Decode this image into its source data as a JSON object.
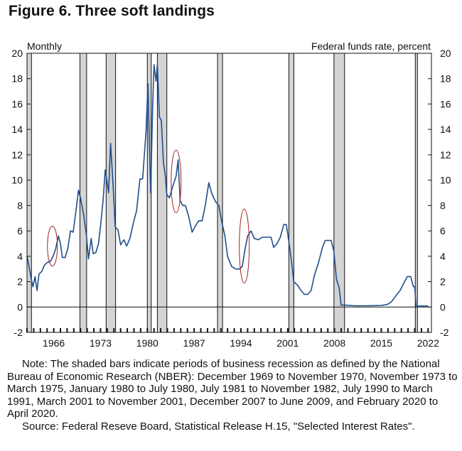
{
  "figure": {
    "title": "Figure 6. Three soft landings",
    "note": "Note: The shaded bars indicate periods of business recession as defined by the National Bureau of Economic Research (NBER): December 1969 to November 1970, November 1973 to March 1975, January 1980 to July 1980, July 1981 to November 1982, July 1990 to March 1991, March 2001 to November 2001, December 2007 to June 2009, and February 2020 to April 2020.",
    "source": "Source: Federal Reseve Board, Statistical Release H.15, \"Selected Interest Rates\"."
  },
  "chart_data": {
    "type": "line",
    "frequency_label": "Monthly",
    "ylabel": "Federal funds rate, percent",
    "xlim": [
      1962,
      2022.5
    ],
    "ylim": [
      -2,
      20
    ],
    "y_ticks": [
      -2,
      0,
      2,
      4,
      6,
      8,
      10,
      12,
      14,
      16,
      18,
      20
    ],
    "x_ticks": [
      1966,
      1973,
      1980,
      1987,
      1994,
      2001,
      2008,
      2015,
      2022
    ],
    "grid": false,
    "recessions": [
      [
        "1969-12",
        "1970-11"
      ],
      [
        "1973-11",
        "1975-03"
      ],
      [
        "1980-01",
        "1980-07"
      ],
      [
        "1981-07",
        "1982-11"
      ],
      [
        "1990-07",
        "1991-03"
      ],
      [
        "2001-03",
        "2001-11"
      ],
      [
        "2007-12",
        "2009-06"
      ],
      [
        "2020-02",
        "2020-04"
      ]
    ],
    "early_shading": [
      "1962-01",
      "1962-08"
    ],
    "highlight_ellipses": [
      {
        "x": 1965.8,
        "y": 4.8
      },
      {
        "x": 1984.3,
        "y": 9.9
      },
      {
        "x": 1994.5,
        "y": 4.8
      }
    ],
    "series": [
      {
        "color": "#1f4e8c",
        "points": [
          [
            1962.0,
            4.0
          ],
          [
            1962.3,
            3.2
          ],
          [
            1962.6,
            2.3
          ],
          [
            1962.9,
            1.6
          ],
          [
            1963.2,
            2.4
          ],
          [
            1963.5,
            1.3
          ],
          [
            1963.8,
            2.6
          ],
          [
            1964.2,
            2.8
          ],
          [
            1964.6,
            3.3
          ],
          [
            1965.0,
            3.5
          ],
          [
            1965.5,
            3.6
          ],
          [
            1965.9,
            4.0
          ],
          [
            1966.3,
            4.6
          ],
          [
            1966.7,
            5.6
          ],
          [
            1967.0,
            5.0
          ],
          [
            1967.3,
            3.9
          ],
          [
            1967.7,
            3.9
          ],
          [
            1968.1,
            4.6
          ],
          [
            1968.5,
            6.0
          ],
          [
            1968.9,
            5.9
          ],
          [
            1969.3,
            7.5
          ],
          [
            1969.7,
            9.2
          ],
          [
            1970.0,
            8.6
          ],
          [
            1970.5,
            7.2
          ],
          [
            1970.9,
            5.6
          ],
          [
            1971.2,
            3.8
          ],
          [
            1971.6,
            5.4
          ],
          [
            1971.9,
            4.2
          ],
          [
            1972.3,
            4.3
          ],
          [
            1972.7,
            5.0
          ],
          [
            1973.0,
            6.4
          ],
          [
            1973.4,
            8.5
          ],
          [
            1973.7,
            10.8
          ],
          [
            1974.2,
            9.0
          ],
          [
            1974.5,
            12.9
          ],
          [
            1974.9,
            9.4
          ],
          [
            1975.2,
            6.3
          ],
          [
            1975.6,
            6.1
          ],
          [
            1976.0,
            4.9
          ],
          [
            1976.5,
            5.3
          ],
          [
            1976.9,
            4.8
          ],
          [
            1977.4,
            5.4
          ],
          [
            1977.9,
            6.6
          ],
          [
            1978.4,
            7.6
          ],
          [
            1978.9,
            10.1
          ],
          [
            1979.3,
            10.1
          ],
          [
            1979.8,
            13.8
          ],
          [
            1980.1,
            17.6
          ],
          [
            1980.3,
            13.2
          ],
          [
            1980.5,
            9.0
          ],
          [
            1980.8,
            15.9
          ],
          [
            1981.0,
            19.1
          ],
          [
            1981.3,
            17.8
          ],
          [
            1981.5,
            19.1
          ],
          [
            1981.8,
            15.0
          ],
          [
            1982.1,
            14.7
          ],
          [
            1982.4,
            11.4
          ],
          [
            1982.7,
            10.3
          ],
          [
            1982.9,
            8.9
          ],
          [
            1983.3,
            8.6
          ],
          [
            1983.8,
            9.5
          ],
          [
            1984.3,
            10.3
          ],
          [
            1984.6,
            11.6
          ],
          [
            1984.9,
            8.4
          ],
          [
            1985.3,
            8.0
          ],
          [
            1985.7,
            8.0
          ],
          [
            1986.2,
            7.1
          ],
          [
            1986.7,
            5.9
          ],
          [
            1987.2,
            6.4
          ],
          [
            1987.7,
            6.8
          ],
          [
            1988.2,
            6.8
          ],
          [
            1988.7,
            8.1
          ],
          [
            1989.2,
            9.8
          ],
          [
            1989.6,
            9.0
          ],
          [
            1990.2,
            8.3
          ],
          [
            1990.7,
            8.0
          ],
          [
            1991.1,
            6.8
          ],
          [
            1991.6,
            5.6
          ],
          [
            1992.0,
            4.0
          ],
          [
            1992.6,
            3.2
          ],
          [
            1993.2,
            3.0
          ],
          [
            1993.8,
            3.0
          ],
          [
            1994.2,
            3.2
          ],
          [
            1994.6,
            4.5
          ],
          [
            1995.0,
            5.6
          ],
          [
            1995.5,
            6.0
          ],
          [
            1996.0,
            5.4
          ],
          [
            1996.6,
            5.3
          ],
          [
            1997.2,
            5.5
          ],
          [
            1997.8,
            5.5
          ],
          [
            1998.5,
            5.5
          ],
          [
            1998.9,
            4.7
          ],
          [
            1999.4,
            5.0
          ],
          [
            1999.9,
            5.5
          ],
          [
            2000.4,
            6.5
          ],
          [
            2000.8,
            6.5
          ],
          [
            2001.2,
            5.0
          ],
          [
            2001.6,
            3.5
          ],
          [
            2001.9,
            2.0
          ],
          [
            2002.5,
            1.7
          ],
          [
            2003.0,
            1.3
          ],
          [
            2003.5,
            1.0
          ],
          [
            2004.0,
            1.0
          ],
          [
            2004.5,
            1.3
          ],
          [
            2005.0,
            2.5
          ],
          [
            2005.6,
            3.5
          ],
          [
            2006.2,
            4.7
          ],
          [
            2006.6,
            5.25
          ],
          [
            2007.5,
            5.25
          ],
          [
            2007.9,
            4.4
          ],
          [
            2008.3,
            2.2
          ],
          [
            2008.7,
            1.5
          ],
          [
            2008.99,
            0.15
          ],
          [
            2009.5,
            0.15
          ],
          [
            2011.0,
            0.1
          ],
          [
            2013.0,
            0.1
          ],
          [
            2015.0,
            0.13
          ],
          [
            2015.9,
            0.2
          ],
          [
            2016.5,
            0.4
          ],
          [
            2017.2,
            0.9
          ],
          [
            2017.8,
            1.3
          ],
          [
            2018.4,
            1.9
          ],
          [
            2018.9,
            2.4
          ],
          [
            2019.4,
            2.4
          ],
          [
            2019.8,
            1.6
          ],
          [
            2020.0,
            1.6
          ],
          [
            2020.2,
            0.05
          ],
          [
            2021.0,
            0.08
          ],
          [
            2022.0,
            0.08
          ]
        ]
      }
    ]
  }
}
